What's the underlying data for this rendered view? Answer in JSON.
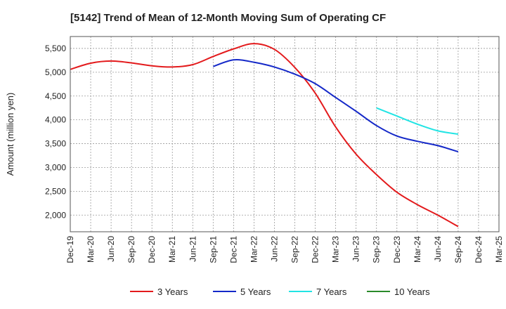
{
  "chart_data": {
    "type": "line",
    "title": "[5142]  Trend of Mean of 12-Month Moving Sum of Operating CF",
    "xlabel": "",
    "ylabel": "Amount (million yen)",
    "ylim": [
      1650,
      5750
    ],
    "yticks": [
      2000,
      2500,
      3000,
      3500,
      4000,
      4500,
      5000,
      5500
    ],
    "ytick_labels": [
      "2,000",
      "2,500",
      "3,000",
      "3,500",
      "4,000",
      "4,500",
      "5,000",
      "5,500"
    ],
    "categories": [
      "Dec-19",
      "Mar-20",
      "Jun-20",
      "Sep-20",
      "Dec-20",
      "Mar-21",
      "Jun-21",
      "Sep-21",
      "Dec-21",
      "Mar-22",
      "Jun-22",
      "Sep-22",
      "Dec-22",
      "Mar-23",
      "Jun-23",
      "Sep-23",
      "Dec-23",
      "Mar-24",
      "Jun-24",
      "Sep-24",
      "Dec-24",
      "Mar-25"
    ],
    "grid": true,
    "legend_position": "bottom",
    "series": [
      {
        "name": "3 Years",
        "color": "#e31a1c",
        "values": [
          5060,
          5190,
          5235,
          5195,
          5135,
          5110,
          5160,
          5330,
          5490,
          5600,
          5480,
          5100,
          4560,
          3850,
          3280,
          2850,
          2480,
          2220,
          2000,
          1760,
          null,
          null
        ]
      },
      {
        "name": "5 Years",
        "color": "#1428c8",
        "values": [
          null,
          null,
          null,
          null,
          null,
          null,
          null,
          5120,
          5260,
          5210,
          5110,
          4960,
          4760,
          4470,
          4180,
          3880,
          3660,
          3550,
          3460,
          3330,
          null,
          null
        ]
      },
      {
        "name": "7 Years",
        "color": "#22e4e4",
        "values": [
          null,
          null,
          null,
          null,
          null,
          null,
          null,
          null,
          null,
          null,
          null,
          null,
          null,
          null,
          null,
          4250,
          4080,
          3910,
          3770,
          3700,
          null,
          null
        ]
      },
      {
        "name": "10 Years",
        "color": "#2a8a2a",
        "values": [
          null,
          null,
          null,
          null,
          null,
          null,
          null,
          null,
          null,
          null,
          null,
          null,
          null,
          null,
          null,
          null,
          null,
          null,
          null,
          null,
          null,
          null
        ]
      }
    ]
  }
}
